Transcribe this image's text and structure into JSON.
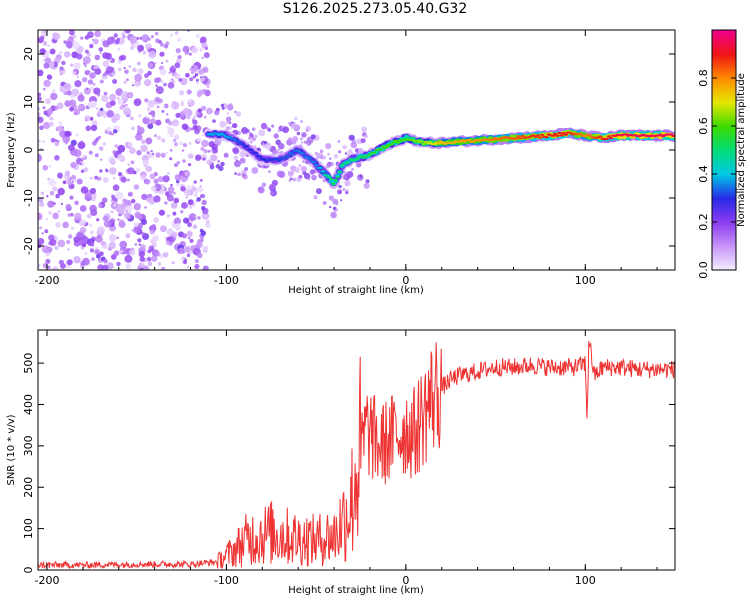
{
  "title": "S126.2025.273.05.40.G32",
  "chart_data": [
    {
      "type": "heatmap",
      "xlabel": "Height of straight line (km)",
      "ylabel": "Frequency (Hz)",
      "xlim": [
        -205,
        150
      ],
      "ylim": [
        -25,
        25
      ],
      "xticks": [
        -200,
        -100,
        0,
        100
      ],
      "yticks": [
        -20,
        -10,
        0,
        10,
        20
      ],
      "colorbar": {
        "label": "Normalized spectral amplitude",
        "range": [
          0,
          1
        ],
        "ticks": [
          "0.0",
          "0.2",
          "0.4",
          "0.6",
          "0.8"
        ],
        "tick_values": [
          0.0,
          0.2,
          0.4,
          0.6,
          0.8
        ]
      },
      "ridge": {
        "x": [
          -110,
          -100,
          -90,
          -80,
          -70,
          -60,
          -50,
          -40,
          -35,
          -30,
          -20,
          -10,
          0,
          10,
          20,
          40,
          60,
          80,
          90,
          100,
          110,
          120,
          130,
          150
        ],
        "freq": [
          3.5,
          3,
          1,
          -2,
          -2,
          0,
          -3,
          -7,
          -3,
          -2,
          -1,
          1,
          2.5,
          1.5,
          1.5,
          2,
          2.5,
          3,
          3.5,
          3,
          2.5,
          3,
          3,
          3
        ],
        "amplitude": [
          0.38,
          0.38,
          0.3,
          0.3,
          0.32,
          0.35,
          0.35,
          0.55,
          0.5,
          0.5,
          0.55,
          0.6,
          0.6,
          0.65,
          0.75,
          0.8,
          0.85,
          0.9,
          0.9,
          0.8,
          0.9,
          0.95,
          0.95,
          0.95
        ]
      },
      "noise_region_x": [
        -205,
        -110
      ],
      "noise_amplitude_range": [
        0.02,
        0.2
      ]
    },
    {
      "type": "line",
      "xlabel": "Height of straight line (km)",
      "ylabel": "SNR (10 * v/v)",
      "xlim": [
        -205,
        150
      ],
      "ylim": [
        0,
        580
      ],
      "xticks": [
        -200,
        -100,
        0,
        100
      ],
      "yticks": [
        0,
        100,
        200,
        300,
        400,
        500
      ],
      "line_color": "#ee3333",
      "x": [
        -205,
        -180,
        -150,
        -120,
        -105,
        -100,
        -95,
        -90,
        -85,
        -80,
        -75,
        -70,
        -65,
        -60,
        -55,
        -50,
        -45,
        -40,
        -35,
        -30,
        -28,
        -25,
        -22,
        -20,
        -15,
        -10,
        -5,
        0,
        5,
        10,
        15,
        20,
        25,
        30,
        40,
        50,
        60,
        70,
        80,
        90,
        95,
        100,
        101,
        102,
        105,
        110,
        120,
        130,
        140,
        150
      ],
      "y": [
        12,
        12,
        14,
        14,
        20,
        35,
        50,
        70,
        80,
        85,
        90,
        85,
        80,
        75,
        75,
        70,
        80,
        80,
        120,
        170,
        230,
        290,
        340,
        330,
        300,
        310,
        330,
        340,
        330,
        380,
        420,
        440,
        460,
        470,
        480,
        490,
        490,
        495,
        490,
        490,
        490,
        500,
        360,
        560,
        470,
        490,
        490,
        485,
        485,
        485
      ]
    }
  ]
}
